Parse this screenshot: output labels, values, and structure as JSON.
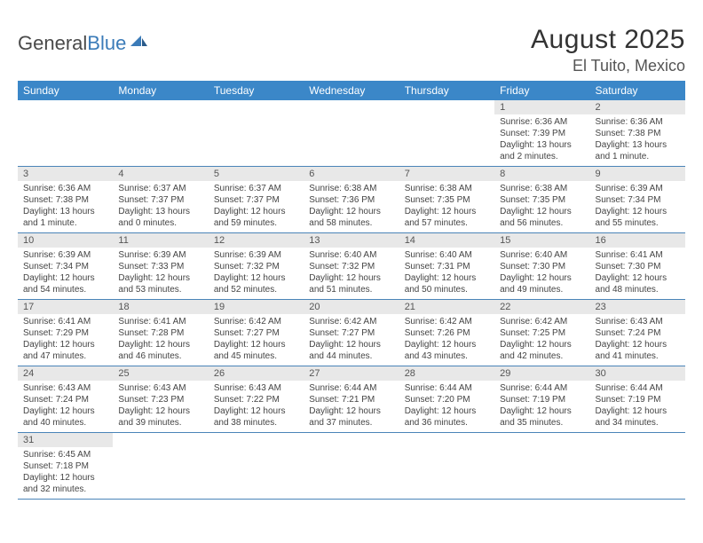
{
  "logo": {
    "part1": "General",
    "part2": "Blue"
  },
  "title": "August 2025",
  "location": "El Tuito, Mexico",
  "colors": {
    "header_bg": "#3b87c8",
    "header_text": "#ffffff",
    "row_divider": "#4a84b8",
    "daynum_bg": "#e8e8e8",
    "text": "#444444",
    "title_color": "#333333",
    "logo_blue": "#3b7bb8"
  },
  "day_headers": [
    "Sunday",
    "Monday",
    "Tuesday",
    "Wednesday",
    "Thursday",
    "Friday",
    "Saturday"
  ],
  "weeks": [
    [
      {
        "n": "",
        "lines": []
      },
      {
        "n": "",
        "lines": []
      },
      {
        "n": "",
        "lines": []
      },
      {
        "n": "",
        "lines": []
      },
      {
        "n": "",
        "lines": []
      },
      {
        "n": "1",
        "lines": [
          "Sunrise: 6:36 AM",
          "Sunset: 7:39 PM",
          "Daylight: 13 hours and 2 minutes."
        ]
      },
      {
        "n": "2",
        "lines": [
          "Sunrise: 6:36 AM",
          "Sunset: 7:38 PM",
          "Daylight: 13 hours and 1 minute."
        ]
      }
    ],
    [
      {
        "n": "3",
        "lines": [
          "Sunrise: 6:36 AM",
          "Sunset: 7:38 PM",
          "Daylight: 13 hours and 1 minute."
        ]
      },
      {
        "n": "4",
        "lines": [
          "Sunrise: 6:37 AM",
          "Sunset: 7:37 PM",
          "Daylight: 13 hours and 0 minutes."
        ]
      },
      {
        "n": "5",
        "lines": [
          "Sunrise: 6:37 AM",
          "Sunset: 7:37 PM",
          "Daylight: 12 hours and 59 minutes."
        ]
      },
      {
        "n": "6",
        "lines": [
          "Sunrise: 6:38 AM",
          "Sunset: 7:36 PM",
          "Daylight: 12 hours and 58 minutes."
        ]
      },
      {
        "n": "7",
        "lines": [
          "Sunrise: 6:38 AM",
          "Sunset: 7:35 PM",
          "Daylight: 12 hours and 57 minutes."
        ]
      },
      {
        "n": "8",
        "lines": [
          "Sunrise: 6:38 AM",
          "Sunset: 7:35 PM",
          "Daylight: 12 hours and 56 minutes."
        ]
      },
      {
        "n": "9",
        "lines": [
          "Sunrise: 6:39 AM",
          "Sunset: 7:34 PM",
          "Daylight: 12 hours and 55 minutes."
        ]
      }
    ],
    [
      {
        "n": "10",
        "lines": [
          "Sunrise: 6:39 AM",
          "Sunset: 7:34 PM",
          "Daylight: 12 hours and 54 minutes."
        ]
      },
      {
        "n": "11",
        "lines": [
          "Sunrise: 6:39 AM",
          "Sunset: 7:33 PM",
          "Daylight: 12 hours and 53 minutes."
        ]
      },
      {
        "n": "12",
        "lines": [
          "Sunrise: 6:39 AM",
          "Sunset: 7:32 PM",
          "Daylight: 12 hours and 52 minutes."
        ]
      },
      {
        "n": "13",
        "lines": [
          "Sunrise: 6:40 AM",
          "Sunset: 7:32 PM",
          "Daylight: 12 hours and 51 minutes."
        ]
      },
      {
        "n": "14",
        "lines": [
          "Sunrise: 6:40 AM",
          "Sunset: 7:31 PM",
          "Daylight: 12 hours and 50 minutes."
        ]
      },
      {
        "n": "15",
        "lines": [
          "Sunrise: 6:40 AM",
          "Sunset: 7:30 PM",
          "Daylight: 12 hours and 49 minutes."
        ]
      },
      {
        "n": "16",
        "lines": [
          "Sunrise: 6:41 AM",
          "Sunset: 7:30 PM",
          "Daylight: 12 hours and 48 minutes."
        ]
      }
    ],
    [
      {
        "n": "17",
        "lines": [
          "Sunrise: 6:41 AM",
          "Sunset: 7:29 PM",
          "Daylight: 12 hours and 47 minutes."
        ]
      },
      {
        "n": "18",
        "lines": [
          "Sunrise: 6:41 AM",
          "Sunset: 7:28 PM",
          "Daylight: 12 hours and 46 minutes."
        ]
      },
      {
        "n": "19",
        "lines": [
          "Sunrise: 6:42 AM",
          "Sunset: 7:27 PM",
          "Daylight: 12 hours and 45 minutes."
        ]
      },
      {
        "n": "20",
        "lines": [
          "Sunrise: 6:42 AM",
          "Sunset: 7:27 PM",
          "Daylight: 12 hours and 44 minutes."
        ]
      },
      {
        "n": "21",
        "lines": [
          "Sunrise: 6:42 AM",
          "Sunset: 7:26 PM",
          "Daylight: 12 hours and 43 minutes."
        ]
      },
      {
        "n": "22",
        "lines": [
          "Sunrise: 6:42 AM",
          "Sunset: 7:25 PM",
          "Daylight: 12 hours and 42 minutes."
        ]
      },
      {
        "n": "23",
        "lines": [
          "Sunrise: 6:43 AM",
          "Sunset: 7:24 PM",
          "Daylight: 12 hours and 41 minutes."
        ]
      }
    ],
    [
      {
        "n": "24",
        "lines": [
          "Sunrise: 6:43 AM",
          "Sunset: 7:24 PM",
          "Daylight: 12 hours and 40 minutes."
        ]
      },
      {
        "n": "25",
        "lines": [
          "Sunrise: 6:43 AM",
          "Sunset: 7:23 PM",
          "Daylight: 12 hours and 39 minutes."
        ]
      },
      {
        "n": "26",
        "lines": [
          "Sunrise: 6:43 AM",
          "Sunset: 7:22 PM",
          "Daylight: 12 hours and 38 minutes."
        ]
      },
      {
        "n": "27",
        "lines": [
          "Sunrise: 6:44 AM",
          "Sunset: 7:21 PM",
          "Daylight: 12 hours and 37 minutes."
        ]
      },
      {
        "n": "28",
        "lines": [
          "Sunrise: 6:44 AM",
          "Sunset: 7:20 PM",
          "Daylight: 12 hours and 36 minutes."
        ]
      },
      {
        "n": "29",
        "lines": [
          "Sunrise: 6:44 AM",
          "Sunset: 7:19 PM",
          "Daylight: 12 hours and 35 minutes."
        ]
      },
      {
        "n": "30",
        "lines": [
          "Sunrise: 6:44 AM",
          "Sunset: 7:19 PM",
          "Daylight: 12 hours and 34 minutes."
        ]
      }
    ],
    [
      {
        "n": "31",
        "lines": [
          "Sunrise: 6:45 AM",
          "Sunset: 7:18 PM",
          "Daylight: 12 hours and 32 minutes."
        ]
      },
      {
        "n": "",
        "lines": []
      },
      {
        "n": "",
        "lines": []
      },
      {
        "n": "",
        "lines": []
      },
      {
        "n": "",
        "lines": []
      },
      {
        "n": "",
        "lines": []
      },
      {
        "n": "",
        "lines": []
      }
    ]
  ]
}
